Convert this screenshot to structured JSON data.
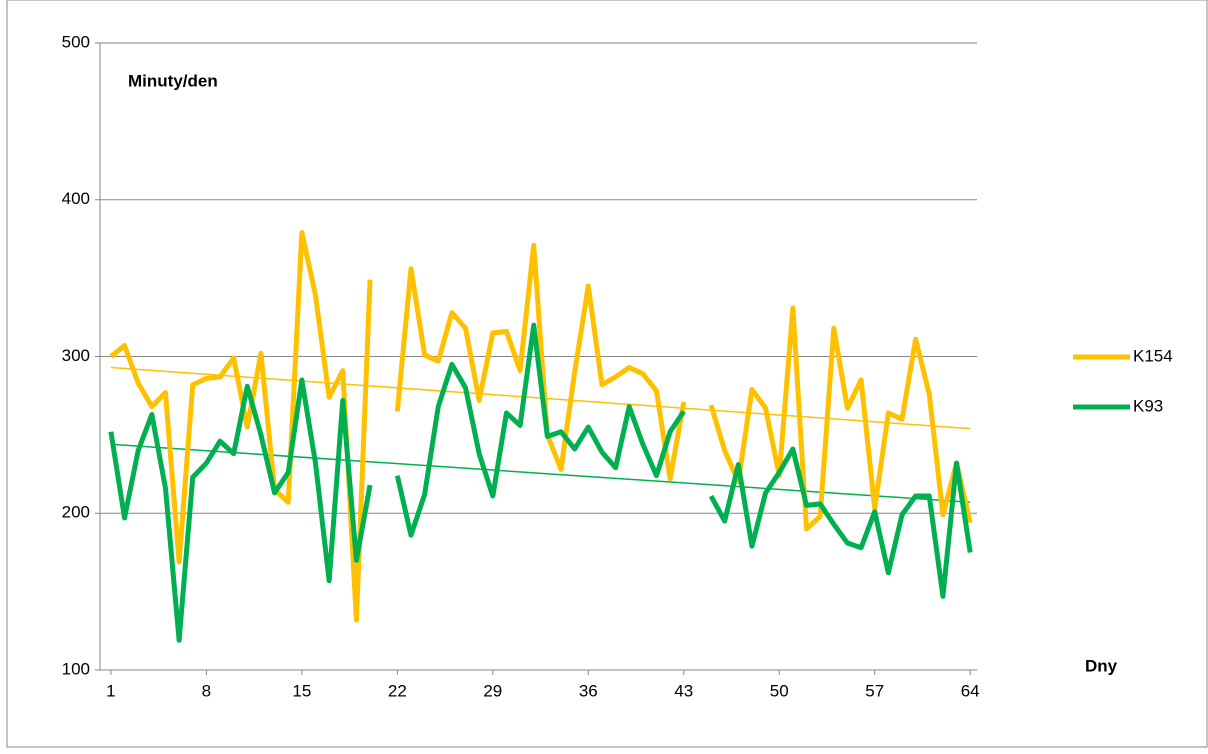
{
  "chart_data": {
    "type": "line",
    "y_label": "Minuty/den",
    "x_label": "Dny",
    "x": [
      1,
      2,
      3,
      4,
      5,
      6,
      7,
      8,
      9,
      10,
      11,
      12,
      13,
      14,
      15,
      16,
      17,
      18,
      19,
      20,
      21,
      22,
      23,
      24,
      25,
      26,
      27,
      28,
      29,
      30,
      31,
      32,
      33,
      34,
      35,
      36,
      37,
      38,
      39,
      40,
      41,
      42,
      43,
      44,
      45,
      46,
      47,
      48,
      49,
      50,
      51,
      52,
      53,
      54,
      55,
      56,
      57,
      58,
      59,
      60,
      61,
      62,
      63,
      64
    ],
    "series": [
      {
        "name": "K154",
        "color": "#FFC000",
        "trend": [
          293,
          254
        ],
        "values": [
          300,
          307,
          283,
          268,
          277,
          169,
          282,
          286,
          287,
          299,
          255,
          302,
          215,
          207,
          379,
          339,
          274,
          291,
          132,
          349,
          null,
          265,
          356,
          301,
          297,
          328,
          318,
          272,
          315,
          316,
          291,
          371,
          250,
          228,
          290,
          345,
          282,
          287,
          293,
          289,
          278,
          222,
          271,
          null,
          269,
          240,
          220,
          279,
          267,
          224,
          331,
          190,
          198,
          318,
          267,
          285,
          203,
          264,
          260,
          311,
          276,
          199,
          232,
          194
        ]
      },
      {
        "name": "K93",
        "color": "#00B050",
        "trend": [
          244,
          207
        ],
        "values": [
          252,
          197,
          240,
          263,
          216,
          119,
          223,
          232,
          246,
          238,
          281,
          250,
          213,
          226,
          285,
          232,
          157,
          272,
          170,
          218,
          null,
          224,
          186,
          212,
          268,
          295,
          280,
          238,
          211,
          264,
          256,
          320,
          249,
          252,
          241,
          255,
          239,
          229,
          268,
          244,
          224,
          252,
          265,
          null,
          211,
          195,
          231,
          179,
          213,
          226,
          241,
          205,
          206,
          193,
          181,
          178,
          201,
          162,
          199,
          211,
          211,
          147,
          232,
          175
        ]
      }
    ],
    "xlim": [
      0.2,
      64.5
    ],
    "xticks": [
      1,
      8,
      15,
      22,
      29,
      36,
      43,
      50,
      57,
      64
    ],
    "ylim": [
      100,
      500
    ],
    "yticks": [
      100,
      200,
      300,
      400,
      500
    ],
    "grid": true,
    "legend": "right"
  }
}
